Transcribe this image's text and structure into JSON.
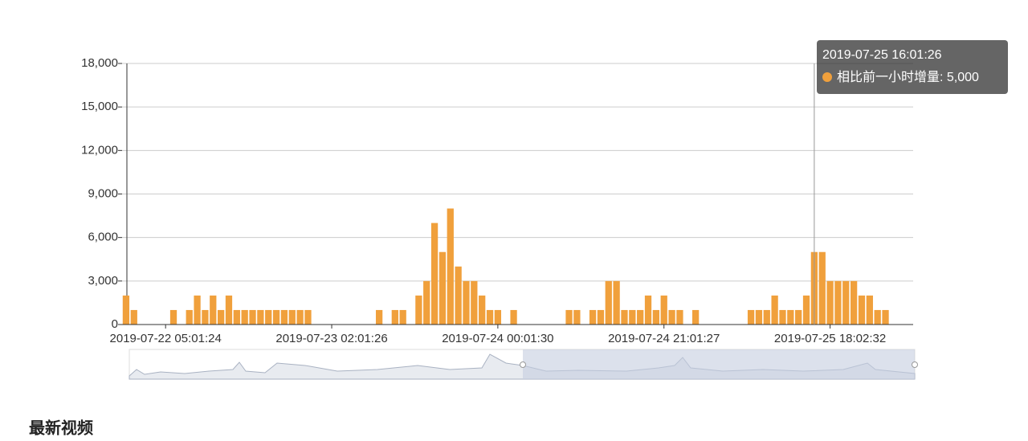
{
  "chart_data": {
    "type": "bar",
    "categories": [
      null,
      null,
      null,
      null,
      null,
      "2019-07-22 05:01:24",
      null,
      null,
      null,
      null,
      null,
      null,
      null,
      null,
      null,
      null,
      null,
      null,
      null,
      null,
      null,
      null,
      null,
      null,
      null,
      null,
      "2019-07-23 02:01:26",
      null,
      null,
      null,
      null,
      null,
      null,
      null,
      null,
      null,
      null,
      null,
      null,
      null,
      null,
      null,
      null,
      null,
      null,
      null,
      null,
      "2019-07-24 00:01:30",
      null,
      null,
      null,
      null,
      null,
      null,
      null,
      null,
      null,
      null,
      null,
      null,
      null,
      null,
      null,
      null,
      null,
      null,
      null,
      null,
      "2019-07-24 21:01:27",
      null,
      null,
      null,
      null,
      null,
      null,
      null,
      null,
      null,
      null,
      null,
      null,
      null,
      null,
      null,
      null,
      null,
      null,
      null,
      null,
      "2019-07-25 18:02:32",
      null,
      null,
      null,
      null,
      null,
      null,
      null,
      null,
      null,
      null
    ],
    "values": [
      2000,
      1000,
      0,
      0,
      0,
      0,
      1000,
      0,
      1000,
      2000,
      1000,
      2000,
      1000,
      2000,
      1000,
      1000,
      1000,
      1000,
      1000,
      1000,
      1000,
      1000,
      1000,
      1000,
      0,
      0,
      0,
      0,
      0,
      0,
      0,
      0,
      1000,
      0,
      1000,
      1000,
      0,
      2000,
      3000,
      7000,
      5000,
      8000,
      4000,
      3000,
      3000,
      2000,
      1000,
      1000,
      0,
      1000,
      0,
      0,
      0,
      0,
      0,
      0,
      1000,
      1000,
      0,
      1000,
      1000,
      3000,
      3000,
      1000,
      1000,
      1000,
      2000,
      1000,
      2000,
      1000,
      1000,
      0,
      1000,
      0,
      0,
      0,
      0,
      0,
      0,
      1000,
      1000,
      1000,
      2000,
      1000,
      1000,
      1000,
      2000,
      5000,
      5000,
      3000,
      3000,
      3000,
      3000,
      2000,
      2000,
      1000,
      1000,
      0,
      0,
      0
    ],
    "color": "#f0a03c",
    "ylim": [
      0,
      18000
    ],
    "yticks": [
      0,
      {
        "value": 3000,
        "label": "3,000"
      },
      {
        "value": 6000,
        "label": "6,000"
      },
      {
        "value": 9000,
        "label": "9,000"
      },
      {
        "value": 12000,
        "label": "12,000"
      },
      {
        "value": 15000,
        "label": "15,000"
      },
      {
        "value": 18000,
        "label": "18,000"
      }
    ],
    "grid": true,
    "tooltip": {
      "index": 87,
      "title": "2019-07-25 16:01:26",
      "label": "相比前一小时增量: 5,000"
    }
  },
  "section_heading": "最新视频"
}
